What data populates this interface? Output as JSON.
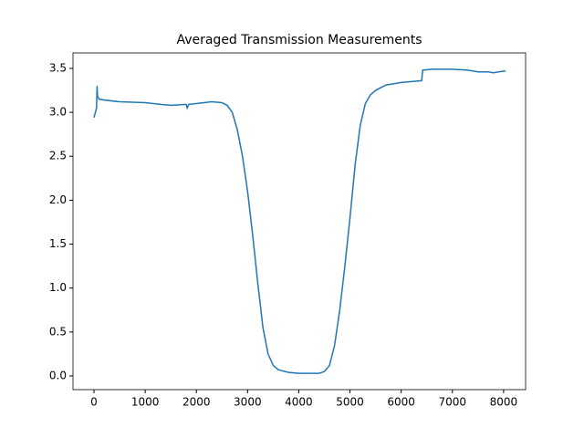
{
  "chart_data": {
    "type": "line",
    "title": "Averaged Transmission Measurements",
    "x": [
      0,
      50,
      60,
      70,
      100,
      200,
      500,
      1000,
      1300,
      1500,
      1800,
      1820,
      1850,
      2000,
      2300,
      2500,
      2600,
      2700,
      2800,
      2900,
      3000,
      3100,
      3200,
      3300,
      3400,
      3500,
      3600,
      3800,
      4000,
      4200,
      4400,
      4500,
      4600,
      4700,
      4800,
      4900,
      5000,
      5100,
      5200,
      5300,
      5400,
      5500,
      5700,
      6000,
      6200,
      6400,
      6420,
      6600,
      7000,
      7300,
      7500,
      7700,
      7800,
      8000,
      8040
    ],
    "series": [
      {
        "color": "#1f77b4",
        "values": [
          2.94,
          3.05,
          3.3,
          3.18,
          3.15,
          3.14,
          3.12,
          3.11,
          3.09,
          3.08,
          3.09,
          3.05,
          3.09,
          3.1,
          3.12,
          3.11,
          3.08,
          3.0,
          2.8,
          2.5,
          2.1,
          1.6,
          1.05,
          0.55,
          0.25,
          0.12,
          0.07,
          0.04,
          0.03,
          0.03,
          0.03,
          0.05,
          0.12,
          0.35,
          0.75,
          1.25,
          1.8,
          2.4,
          2.85,
          3.1,
          3.2,
          3.25,
          3.31,
          3.34,
          3.35,
          3.36,
          3.48,
          3.49,
          3.49,
          3.48,
          3.46,
          3.46,
          3.45,
          3.47,
          3.47
        ]
      }
    ],
    "xlim": [
      -410,
      8430
    ],
    "ylim": [
      -0.156,
      3.676
    ],
    "xticks": [
      0,
      1000,
      2000,
      3000,
      4000,
      5000,
      6000,
      7000,
      8000
    ],
    "yticks": [
      {
        "value": 0,
        "label": "0.0"
      },
      0.5,
      {
        "value": 1,
        "label": "1.0"
      },
      1.5,
      {
        "value": 2,
        "label": "2.0"
      },
      2.5,
      {
        "value": 3,
        "label": "3.0"
      },
      3.5
    ]
  }
}
